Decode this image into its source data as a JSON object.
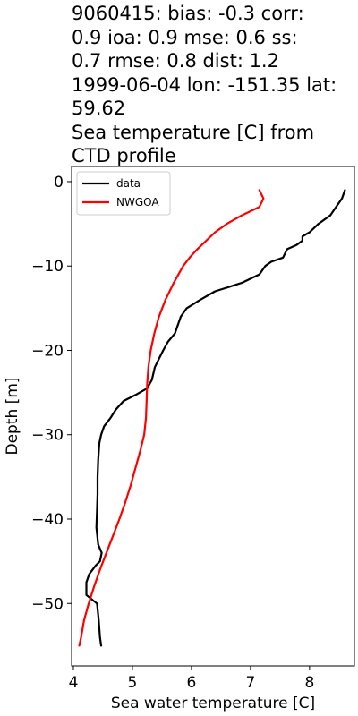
{
  "chart_data": {
    "type": "line",
    "title": "9060415: bias: -0.3  corr:\n0.9  ioa: 0.9  mse: 0.6  ss:\n0.7  rmse: 0.8  dist: 1.2\n1999-06-04 lon: -151.35 lat:\n59.62\nSea temperature [C] from\nCTD profile",
    "xlabel": "Sea water temperature [C]",
    "ylabel": "Depth [m]",
    "xlim": [
      3.97,
      8.76
    ],
    "ylim": [
      -57.4,
      1.8
    ],
    "xticks": [
      4,
      5,
      6,
      7,
      8
    ],
    "yticks": [
      0,
      -10,
      -20,
      -30,
      -40,
      -50
    ],
    "xtick_labels": [
      "4",
      "5",
      "6",
      "7",
      "8"
    ],
    "ytick_labels": [
      "0",
      "−10",
      "−20",
      "−30",
      "−40",
      "−50"
    ],
    "grid": false,
    "legend_position": "top-left",
    "series": [
      {
        "name": "data",
        "color": "#000000",
        "points": [
          [
            8.6,
            -1
          ],
          [
            8.55,
            -2
          ],
          [
            8.45,
            -3
          ],
          [
            8.35,
            -4
          ],
          [
            8.15,
            -5
          ],
          [
            8.0,
            -6
          ],
          [
            7.88,
            -6.5
          ],
          [
            7.88,
            -7
          ],
          [
            7.78,
            -7.5
          ],
          [
            7.62,
            -8
          ],
          [
            7.55,
            -9
          ],
          [
            7.35,
            -9.5
          ],
          [
            7.25,
            -10
          ],
          [
            7.15,
            -11
          ],
          [
            6.85,
            -12
          ],
          [
            6.4,
            -13
          ],
          [
            6.15,
            -14
          ],
          [
            5.92,
            -15
          ],
          [
            5.82,
            -16
          ],
          [
            5.72,
            -18
          ],
          [
            5.6,
            -19
          ],
          [
            5.52,
            -20
          ],
          [
            5.45,
            -21
          ],
          [
            5.38,
            -22
          ],
          [
            5.33,
            -23.5
          ],
          [
            5.25,
            -24.5
          ],
          [
            5.05,
            -25.3
          ],
          [
            4.85,
            -26
          ],
          [
            4.72,
            -27
          ],
          [
            4.63,
            -28
          ],
          [
            4.52,
            -29
          ],
          [
            4.47,
            -30
          ],
          [
            4.44,
            -31
          ],
          [
            4.42,
            -33
          ],
          [
            4.41,
            -35
          ],
          [
            4.41,
            -37
          ],
          [
            4.4,
            -39
          ],
          [
            4.39,
            -41
          ],
          [
            4.42,
            -43
          ],
          [
            4.48,
            -44
          ],
          [
            4.45,
            -45
          ],
          [
            4.38,
            -45.5
          ],
          [
            4.27,
            -46.5
          ],
          [
            4.22,
            -47.5
          ],
          [
            4.22,
            -49
          ],
          [
            4.4,
            -50
          ],
          [
            4.43,
            -52
          ],
          [
            4.45,
            -54
          ],
          [
            4.47,
            -55
          ]
        ]
      },
      {
        "name": "NWGOA",
        "color": "#ff0000",
        "points": [
          [
            7.15,
            -1
          ],
          [
            7.22,
            -2
          ],
          [
            7.15,
            -3
          ],
          [
            6.85,
            -4
          ],
          [
            6.6,
            -5
          ],
          [
            6.4,
            -6
          ],
          [
            6.25,
            -7
          ],
          [
            6.1,
            -8
          ],
          [
            5.97,
            -9
          ],
          [
            5.86,
            -10
          ],
          [
            5.7,
            -12
          ],
          [
            5.56,
            -14
          ],
          [
            5.45,
            -16
          ],
          [
            5.37,
            -18
          ],
          [
            5.31,
            -20
          ],
          [
            5.27,
            -22
          ],
          [
            5.25,
            -24
          ],
          [
            5.24,
            -26
          ],
          [
            5.23,
            -28
          ],
          [
            5.2,
            -30
          ],
          [
            5.13,
            -32
          ],
          [
            5.05,
            -34
          ],
          [
            4.97,
            -36
          ],
          [
            4.88,
            -38
          ],
          [
            4.78,
            -40
          ],
          [
            4.67,
            -42
          ],
          [
            4.56,
            -44
          ],
          [
            4.45,
            -46
          ],
          [
            4.35,
            -48
          ],
          [
            4.26,
            -50
          ],
          [
            4.18,
            -52
          ],
          [
            4.13,
            -54
          ],
          [
            4.1,
            -55
          ]
        ]
      }
    ]
  }
}
